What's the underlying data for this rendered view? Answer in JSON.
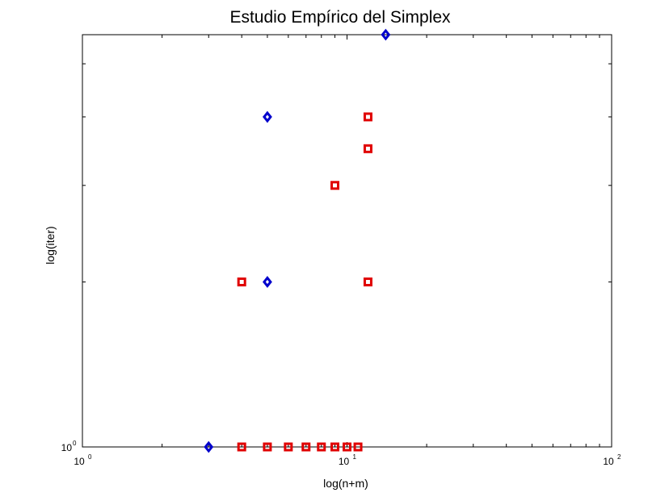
{
  "chart_data": {
    "type": "scatter",
    "title": "Estudio Empírico del Simplex",
    "xlabel": "log(n+m)",
    "ylabel": "log(iter)",
    "x_scale": "log",
    "y_scale": "log",
    "xlim": [
      1,
      100
    ],
    "ylim": [
      1,
      5.65
    ],
    "x_ticks": [
      {
        "value": 1,
        "base": "10",
        "exp": "0"
      },
      {
        "value": 10,
        "base": "10",
        "exp": "1"
      },
      {
        "value": 100,
        "base": "10",
        "exp": "2"
      }
    ],
    "y_ticks": [
      {
        "value": 1,
        "base": "10",
        "exp": "0"
      }
    ],
    "grid": false,
    "series": [
      {
        "marker": "diamond",
        "color": "#0000cc",
        "points": [
          {
            "x": 3,
            "y": 1
          },
          {
            "x": 5,
            "y": 2
          },
          {
            "x": 5,
            "y": 4
          },
          {
            "x": 14,
            "y": 5.65
          }
        ]
      },
      {
        "marker": "square",
        "color": "#e00000",
        "points": [
          {
            "x": 4,
            "y": 1
          },
          {
            "x": 5,
            "y": 1
          },
          {
            "x": 6,
            "y": 1
          },
          {
            "x": 7,
            "y": 1
          },
          {
            "x": 8,
            "y": 1
          },
          {
            "x": 9,
            "y": 1
          },
          {
            "x": 10,
            "y": 1
          },
          {
            "x": 11,
            "y": 1
          },
          {
            "x": 4,
            "y": 2
          },
          {
            "x": 12,
            "y": 2
          },
          {
            "x": 9,
            "y": 3
          },
          {
            "x": 12,
            "y": 3.5
          },
          {
            "x": 12,
            "y": 4
          }
        ]
      }
    ]
  }
}
